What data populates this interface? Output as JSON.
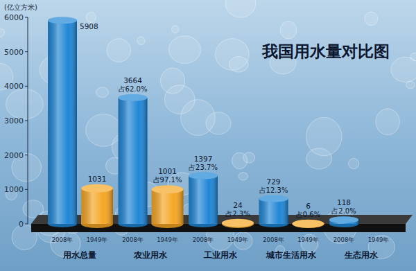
{
  "chart_data": {
    "type": "bar",
    "title": "我国用水量对比图",
    "y_label": "(亿立方米)",
    "categories": [
      "用水总量",
      "农业用水",
      "工业用水",
      "城市生活用水",
      "生态用水"
    ],
    "series": [
      {
        "name": "2008年",
        "color": "#1f86d6",
        "values": [
          5908,
          3664,
          1397,
          729,
          118
        ],
        "share_labels": [
          null,
          "占62.0%",
          "占23.7%",
          "占12.3%",
          "占2.0%"
        ]
      },
      {
        "name": "1949年",
        "color": "#f5a623",
        "values": [
          1031,
          1001,
          24,
          6,
          null
        ],
        "share_labels": [
          null,
          "占97.1%",
          "占2.3%",
          "占0.6%",
          null
        ]
      }
    ],
    "ylim": [
      0,
      6000
    ],
    "yticks": [
      0,
      1000,
      2000,
      3000,
      4000,
      5000,
      6000
    ],
    "grid": false,
    "data_labels": true
  }
}
